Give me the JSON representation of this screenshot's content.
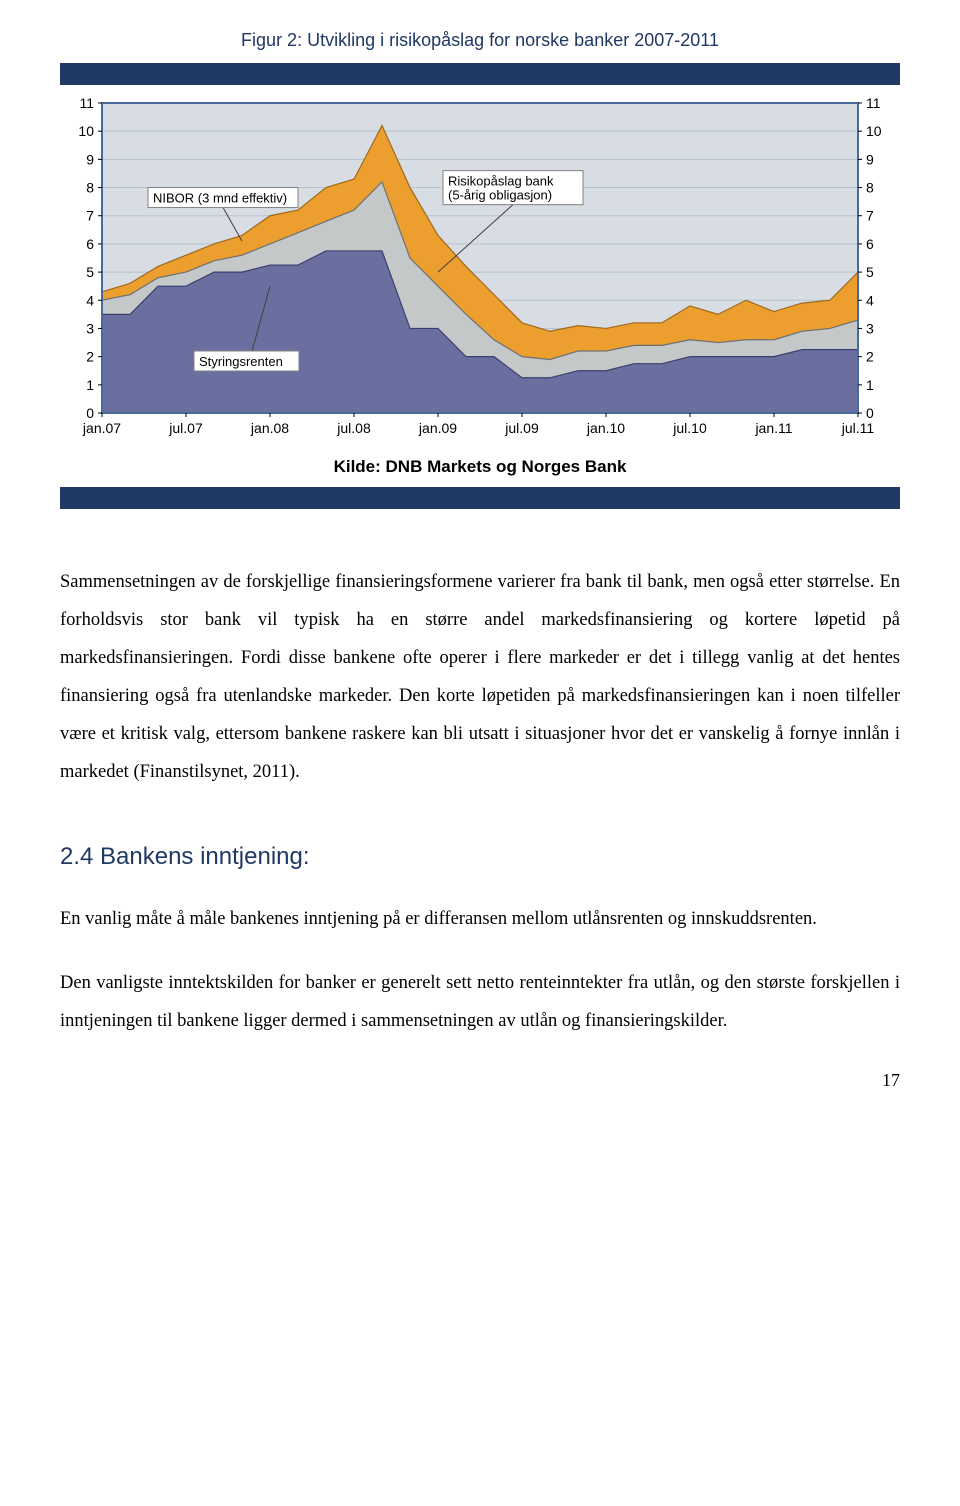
{
  "figure": {
    "caption": "Figur 2: Utvikling i risikopåslag for norske banker 2007-2011",
    "source": "Kilde: DNB Markets og Norges Bank",
    "chart": {
      "type": "area-stacked",
      "background_color": "#d7dde3",
      "border_color": "#4a6a9c",
      "grid_color": "#b9c3cd",
      "ylim": [
        0,
        11
      ],
      "ytick_step": 1,
      "y_ticks": [
        0,
        1,
        2,
        3,
        4,
        5,
        6,
        7,
        8,
        9,
        10,
        11
      ],
      "x_categories": [
        "jan.07",
        "jul.07",
        "jan.08",
        "jul.08",
        "jan.09",
        "jul.09",
        "jan.10",
        "jul.10",
        "jan.11",
        "jul.11"
      ],
      "series": {
        "styringsrenten": {
          "fill": "#6a6fa0",
          "stroke": "#3a3f70",
          "label": "Styringsrenten",
          "values": [
            3.5,
            3.5,
            4.5,
            4.5,
            5.0,
            5.0,
            5.25,
            5.25,
            5.75,
            5.75,
            5.75,
            3.0,
            3.0,
            2.0,
            2.0,
            1.25,
            1.25,
            1.5,
            1.5,
            1.75,
            1.75,
            2.0,
            2.0,
            2.0,
            2.0,
            2.25,
            2.25,
            2.25
          ]
        },
        "nibor": {
          "fill": "#c5c8c9",
          "stroke": "#6e7072",
          "label": "NIBOR (3 mnd effektiv)",
          "values": [
            4.0,
            4.2,
            4.8,
            5.0,
            5.4,
            5.6,
            6.0,
            6.4,
            6.8,
            7.2,
            8.2,
            5.5,
            4.5,
            3.5,
            2.6,
            2.0,
            1.9,
            2.2,
            2.2,
            2.4,
            2.4,
            2.6,
            2.5,
            2.6,
            2.6,
            2.9,
            3.0,
            3.3
          ]
        },
        "risikopaaslag": {
          "fill": "#ec9f2e",
          "stroke": "#9e6a1e",
          "label": "Risikopåslag bank\n(5-årig obligasjon)",
          "values": [
            4.3,
            4.6,
            5.2,
            5.6,
            6.0,
            6.3,
            7.0,
            7.2,
            8.0,
            8.3,
            10.2,
            8.0,
            6.3,
            5.2,
            4.2,
            3.2,
            2.9,
            3.1,
            3.0,
            3.2,
            3.2,
            3.8,
            3.5,
            4.0,
            3.6,
            3.9,
            4.0,
            5.0
          ]
        }
      },
      "label_callouts": {
        "nibor": {
          "text": "NIBOR (3 mnd effektiv)"
        },
        "risikopaaslag": {
          "line1": "Risikopåslag bank",
          "line2": "(5-årig obligasjon)"
        },
        "styringsrenten": {
          "text": "Styringsrenten"
        }
      },
      "label_fontsize": 13,
      "tick_fontsize": 14
    }
  },
  "body": {
    "para1": "Sammensetningen av de forskjellige finansieringsformene varierer fra bank til bank, men også etter størrelse. En forholdsvis stor bank vil typisk ha en større andel markedsfinansiering og kortere løpetid på markedsfinansieringen. Fordi disse bankene ofte operer i flere markeder er det i tillegg vanlig at det hentes finansiering også fra utenlandske markeder. Den korte løpetiden på markedsfinansieringen kan i noen tilfeller være et kritisk valg, ettersom bankene raskere kan bli utsatt i situasjoner hvor det er vanskelig å fornye innlån i markedet (Finanstilsynet, 2011).",
    "section_heading": "2.4  Bankens inntjening:",
    "para2": "En vanlig måte å måle bankenes inntjening på er differansen mellom utlånsrenten og innskuddsrenten.",
    "para3": "Den vanligste inntektskilden for banker er generelt sett netto renteinntekter fra utlån, og den største forskjellen i inntjeningen til bankene ligger dermed i sammensetningen av utlån og finansieringskilder."
  },
  "page_number": "17"
}
